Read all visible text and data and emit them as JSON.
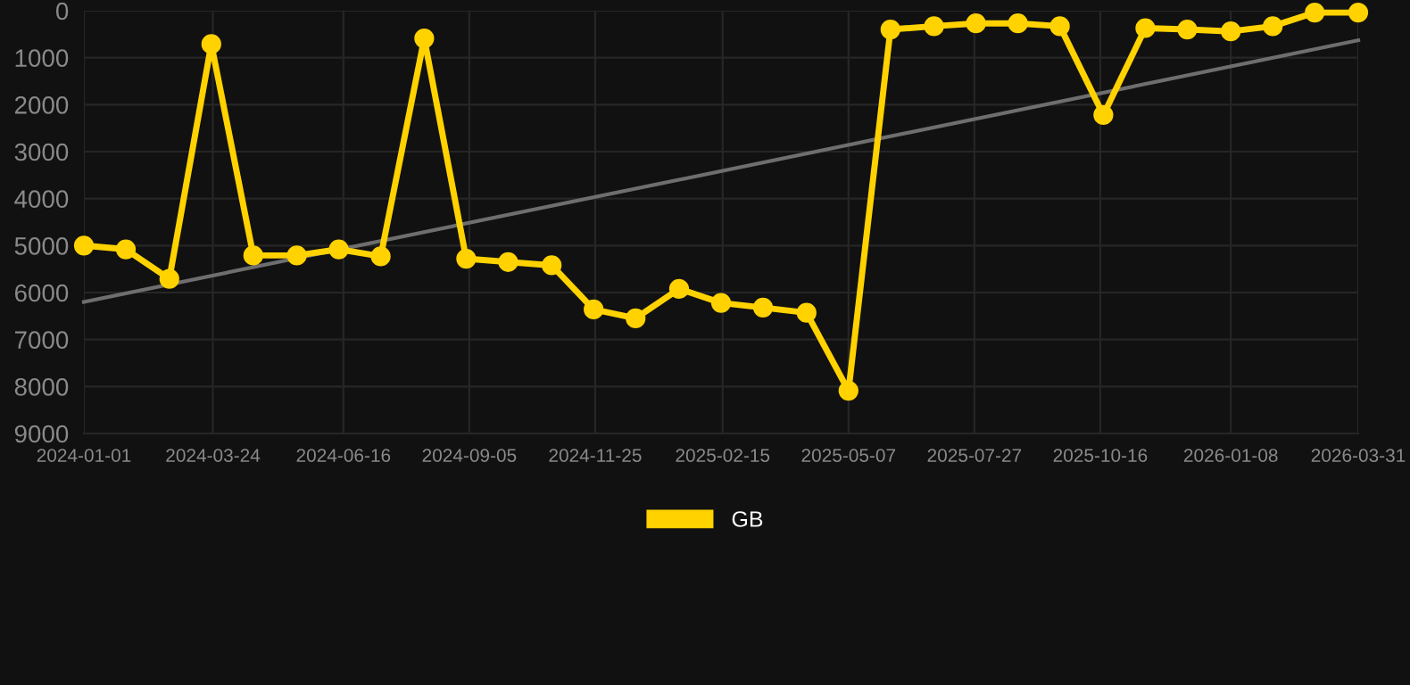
{
  "chart_data": {
    "type": "line",
    "x": [
      "2024-01-01",
      "2024-01-28",
      "2024-02-25",
      "2024-03-23",
      "2024-04-19",
      "2024-05-17",
      "2024-06-13",
      "2024-07-10",
      "2024-08-07",
      "2024-09-03",
      "2024-09-30",
      "2024-10-28",
      "2024-11-24",
      "2024-12-21",
      "2025-01-18",
      "2025-02-14",
      "2025-03-13",
      "2025-04-10",
      "2025-05-07",
      "2025-06-03",
      "2025-07-01",
      "2025-07-28",
      "2025-08-24",
      "2025-09-20",
      "2025-10-18",
      "2025-11-14",
      "2025-12-11",
      "2026-01-08",
      "2026-02-04",
      "2026-03-03",
      "2026-03-31"
    ],
    "series": [
      {
        "name": "GB",
        "color": "#ffd200",
        "marker": "circle",
        "values": [
          5000,
          5080,
          5710,
          710,
          5210,
          5210,
          5080,
          5230,
          590,
          5280,
          5350,
          5420,
          6360,
          6550,
          5920,
          6220,
          6320,
          6430,
          8090,
          400,
          330,
          270,
          270,
          330,
          2220,
          370,
          400,
          440,
          330,
          40,
          40
        ]
      },
      {
        "type": "line",
        "color": "#6e6e6e",
        "marker": "none",
        "x": [
          "2024-01-01",
          "2026-03-31"
        ],
        "values": [
          6200,
          630
        ]
      }
    ],
    "ylim": [
      9000,
      0
    ],
    "yticks": [
      0,
      1000,
      2000,
      3000,
      4000,
      5000,
      6000,
      7000,
      8000,
      9000
    ],
    "xlim": [
      "2024-01-01",
      "2026-03-31"
    ],
    "xticks": [
      "2024-01-01",
      "2024-03-24",
      "2024-06-16",
      "2024-09-05",
      "2024-11-25",
      "2025-02-15",
      "2025-05-07",
      "2025-07-27",
      "2025-10-16",
      "2026-01-08",
      "2026-03-31"
    ],
    "grid": true,
    "legend": "bottom",
    "line_style": "solid"
  }
}
